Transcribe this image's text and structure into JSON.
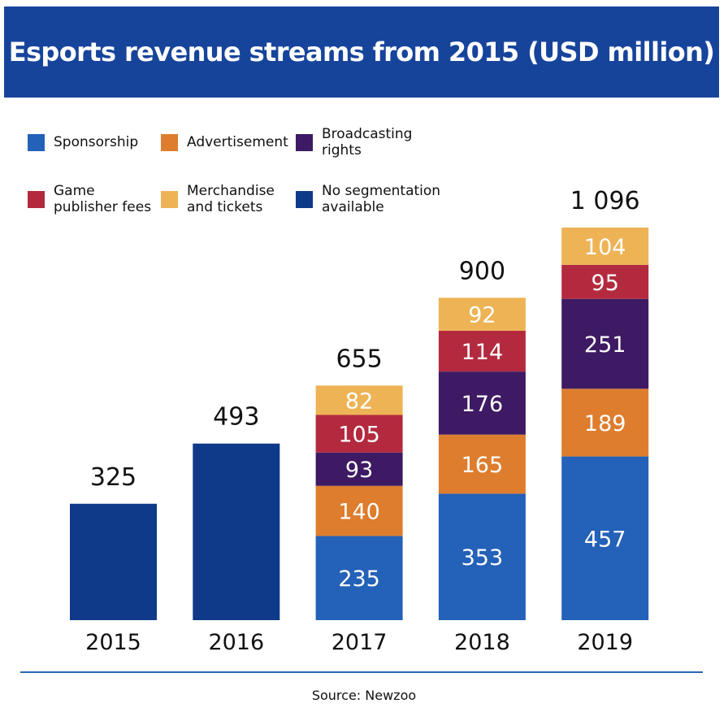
{
  "title": "Esports revenue streams from 2015 (USD million)",
  "source": "Source: Newzoo",
  "legend": [
    {
      "label": "Sponsorship",
      "color": "#2461b8"
    },
    {
      "label": "Advertisement",
      "color": "#de7d2e"
    },
    {
      "label": "Broadcasting rights",
      "color": "#3d1a63"
    },
    {
      "label": "Game publisher fees",
      "color": "#b32a3e"
    },
    {
      "label": "Merchandise and tickets",
      "color": "#edb355"
    },
    {
      "label": "No segmentation available",
      "color": "#0f3a8a"
    }
  ],
  "chart_data": {
    "type": "bar",
    "stacked": true,
    "title": "Esports revenue streams from 2015 (USD million)",
    "categories": [
      "2015",
      "2016",
      "2017",
      "2018",
      "2019"
    ],
    "totals": [
      "325",
      "493",
      "655",
      "900",
      "1 096"
    ],
    "series": [
      {
        "name": "Sponsorship",
        "color": "#2461b8",
        "values": [
          null,
          null,
          235,
          353,
          457
        ]
      },
      {
        "name": "Advertisement",
        "color": "#de7d2e",
        "values": [
          null,
          null,
          140,
          165,
          189
        ]
      },
      {
        "name": "Broadcasting rights",
        "color": "#3d1a63",
        "values": [
          null,
          null,
          93,
          176,
          251
        ]
      },
      {
        "name": "Game publisher fees",
        "color": "#b32a3e",
        "values": [
          null,
          null,
          105,
          114,
          95
        ]
      },
      {
        "name": "Merchandise and tickets",
        "color": "#edb355",
        "values": [
          null,
          null,
          82,
          92,
          104
        ]
      },
      {
        "name": "No segmentation available",
        "color": "#0f3a8a",
        "values": [
          325,
          493,
          null,
          null,
          null
        ]
      }
    ],
    "ylim": [
      0,
      1096
    ],
    "grid": false,
    "legend_position": "top-left"
  }
}
